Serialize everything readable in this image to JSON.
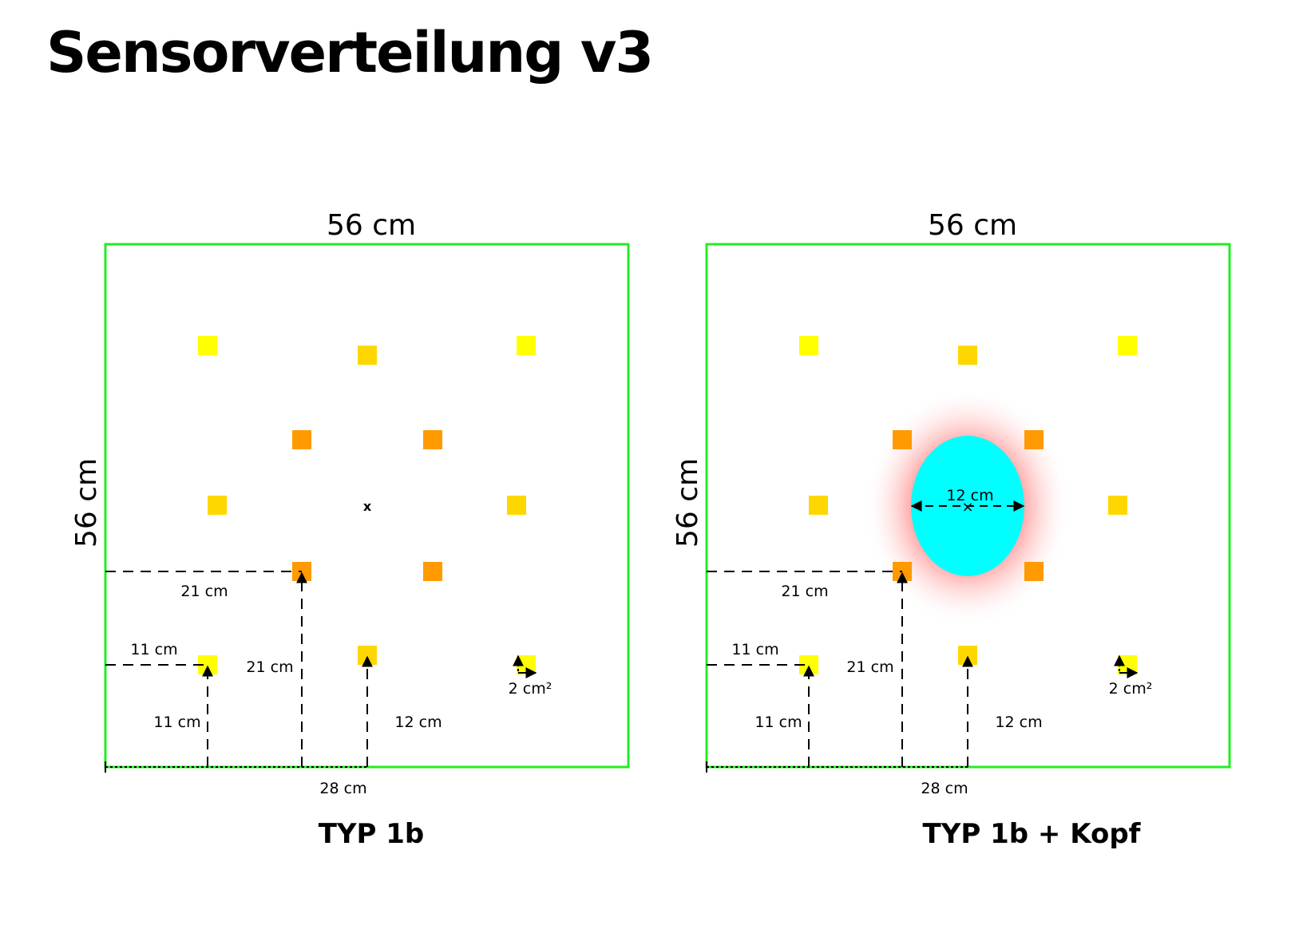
{
  "title": "Sensorverteilung v3",
  "colors": {
    "frame": "#22ee22",
    "sensor_outer": "#ffff00",
    "sensor_mid": "#ffd700",
    "sensor_inner": "#ff9a00",
    "head": "#00ffff",
    "head_glow": "#ff5a5a"
  },
  "panels": [
    {
      "caption": "TYP 1b",
      "width_label": "56 cm",
      "height_label": "56 cm",
      "center_mark": "x",
      "labels": {
        "d21_horizontal": "21 cm",
        "d11_horizontal": "11 cm",
        "d21_vertical": "21 cm",
        "d11_vertical": "11 cm",
        "d12": "12 cm",
        "d28": "28 cm",
        "area": "2 cm²"
      }
    },
    {
      "caption": "TYP 1b + Kopf",
      "width_label": "56 cm",
      "height_label": "56 cm",
      "head_label": "12 cm",
      "labels": {
        "d21_horizontal": "21 cm",
        "d11_horizontal": "11 cm",
        "d21_vertical": "21 cm",
        "d11_vertical": "11 cm",
        "d12": "12 cm",
        "d28": "28 cm",
        "area": "2 cm²"
      }
    }
  ]
}
